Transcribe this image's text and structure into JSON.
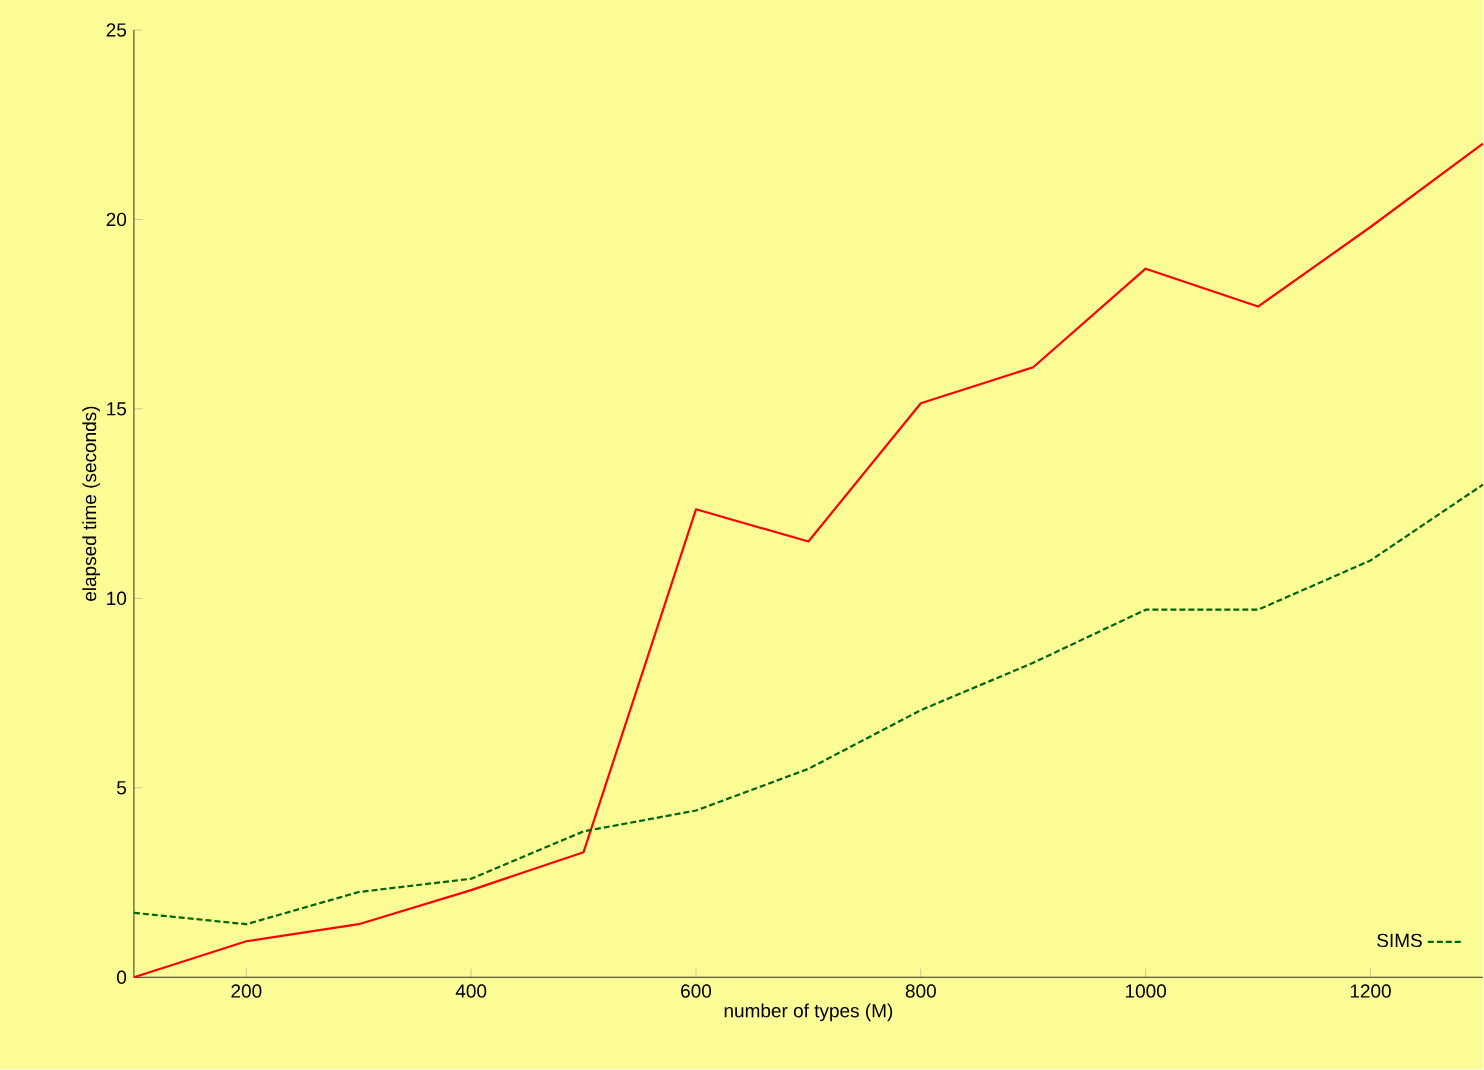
{
  "chart_data": {
    "type": "line",
    "xlabel": "number of types (M)",
    "ylabel": "elapsed time (seconds)",
    "x": [
      100,
      200,
      300,
      400,
      500,
      600,
      700,
      800,
      900,
      1000,
      1100,
      1200,
      1300
    ],
    "series": [
      {
        "color": "#ff0000",
        "line_style": "solid",
        "values": [
          0,
          0.95,
          1.4,
          2.3,
          3.3,
          12.35,
          11.5,
          15.15,
          16.1,
          18.7,
          17.7,
          19.8,
          22
        ]
      },
      {
        "name": "SIMS",
        "color": "#006400",
        "line_style": "dashed",
        "values": [
          1.7,
          1.4,
          2.25,
          2.6,
          3.85,
          4.4,
          5.5,
          7.05,
          8.3,
          9.7,
          9.7,
          11.0,
          13.0
        ]
      }
    ],
    "xlim": [
      100,
      1300
    ],
    "ylim": [
      0,
      25
    ],
    "xticks": [
      200,
      400,
      600,
      800,
      1000,
      1200
    ],
    "yticks": [
      0,
      5,
      10,
      15,
      20,
      25
    ],
    "grid": false,
    "legend": "bottom right",
    "marker": "none"
  }
}
